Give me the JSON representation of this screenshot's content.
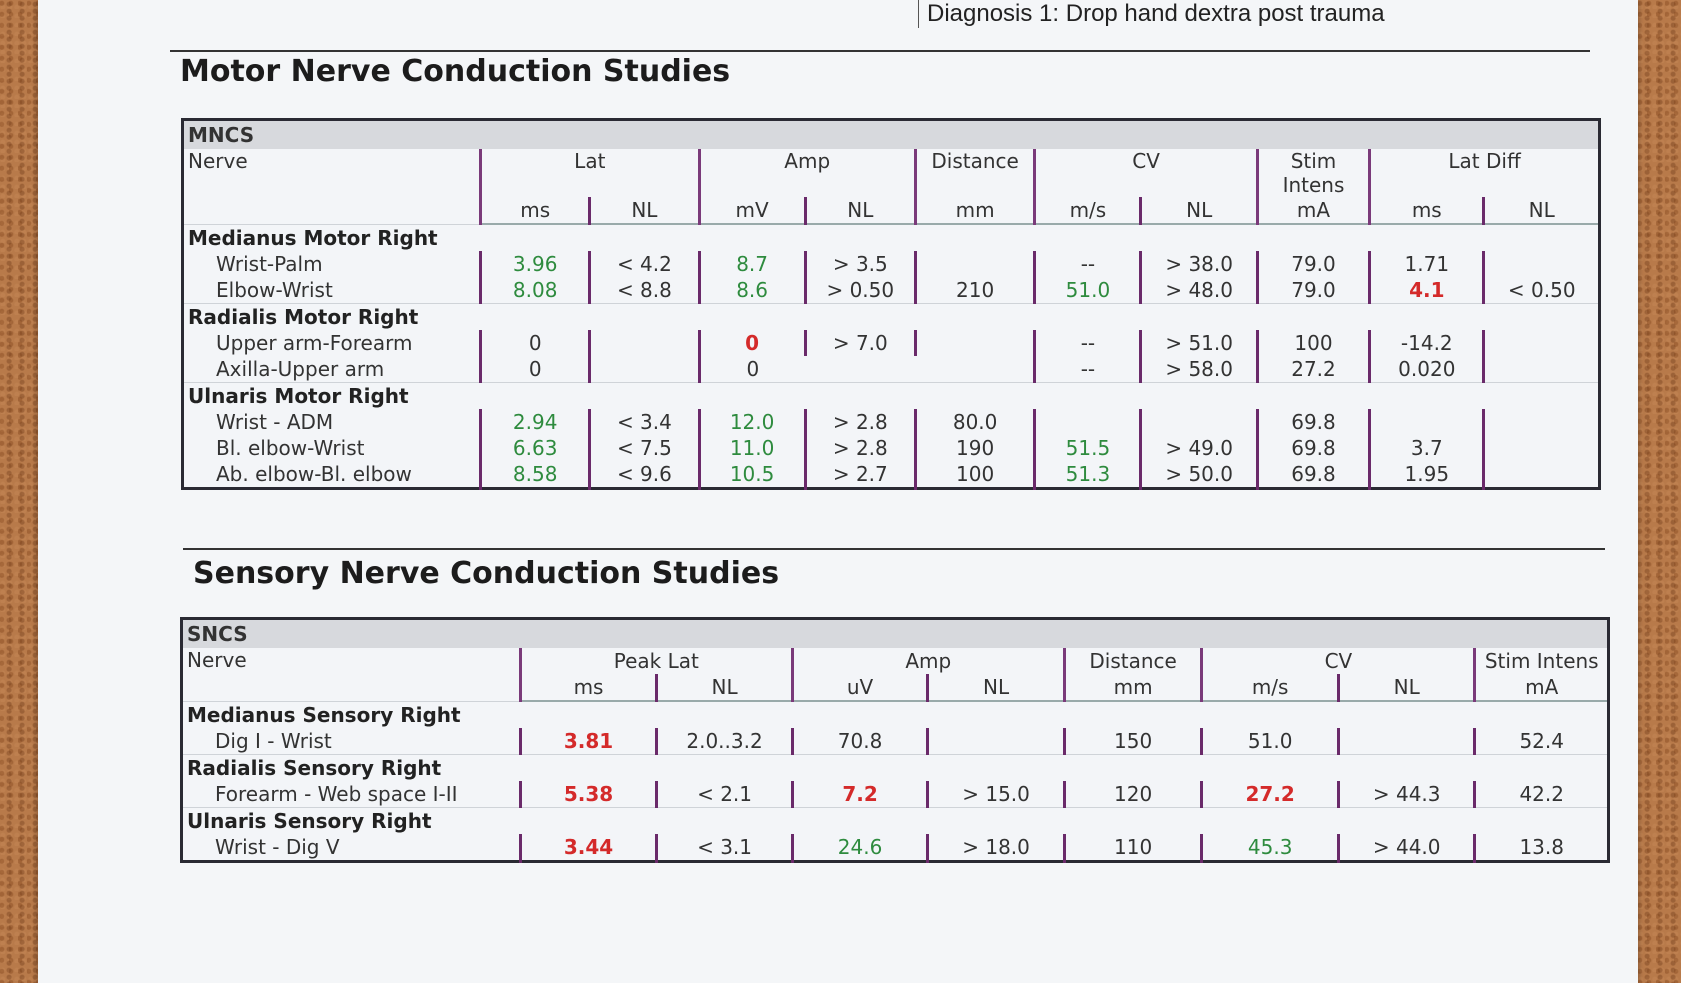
{
  "diagnosis": "Diagnosis 1: Drop hand dextra post trauma",
  "motor": {
    "title": "Motor Nerve Conduction Studies",
    "band": "MNCS",
    "headers": {
      "nerve": "Nerve",
      "lat": "Lat",
      "amp": "Amp",
      "distance": "Distance",
      "cv": "CV",
      "stim": "Stim Intens",
      "latdiff": "Lat Diff"
    },
    "units": [
      "ms",
      "NL",
      "mV",
      "NL",
      "mm",
      "m/s",
      "NL",
      "mA",
      "ms",
      "NL"
    ],
    "groups": [
      {
        "name": "Medianus Motor Right",
        "rows": [
          {
            "site": "Wrist-Palm",
            "cells": [
              "3.96",
              "< 4.2",
              "8.7",
              "> 3.5",
              "",
              "--",
              "> 38.0",
              "79.0",
              "1.71",
              ""
            ]
          },
          {
            "site": "Elbow-Wrist",
            "cells": [
              "8.08",
              "< 8.8",
              "8.6",
              "> 0.50",
              "210",
              "51.0",
              "> 48.0",
              "79.0",
              "4.1",
              "< 0.50"
            ]
          }
        ]
      },
      {
        "name": "Radialis Motor Right",
        "rows": [
          {
            "site": "Upper arm-Forearm",
            "cells": [
              "0",
              "",
              "0",
              "> 7.0",
              "",
              "--",
              "> 51.0",
              "100",
              "-14.2",
              ""
            ]
          },
          {
            "site": "Axilla-Upper arm",
            "cells": [
              "0",
              "",
              "0",
              "",
              "",
              "--",
              "> 58.0",
              "27.2",
              "0.020",
              ""
            ]
          }
        ]
      },
      {
        "name": "Ulnaris Motor Right",
        "rows": [
          {
            "site": "Wrist - ADM",
            "cells": [
              "2.94",
              "< 3.4",
              "12.0",
              "> 2.8",
              "80.0",
              "",
              "",
              "69.8",
              "",
              ""
            ]
          },
          {
            "site": "Bl. elbow-Wrist",
            "cells": [
              "6.63",
              "< 7.5",
              "11.0",
              "> 2.8",
              "190",
              "51.5",
              "> 49.0",
              "69.8",
              "3.7",
              ""
            ]
          },
          {
            "site": "Ab. elbow-Bl. elbow",
            "cells": [
              "8.58",
              "< 9.6",
              "10.5",
              "> 2.7",
              "100",
              "51.3",
              "> 50.0",
              "69.8",
              "1.95",
              ""
            ]
          }
        ]
      }
    ]
  },
  "sensory": {
    "title": "Sensory Nerve Conduction Studies",
    "band": "SNCS",
    "headers": {
      "nerve": "Nerve",
      "peaklat": "Peak Lat",
      "amp": "Amp",
      "distance": "Distance",
      "cv": "CV",
      "stim": "Stim Intens"
    },
    "units": [
      "ms",
      "NL",
      "uV",
      "NL",
      "mm",
      "m/s",
      "NL",
      "mA"
    ],
    "groups": [
      {
        "name": "Medianus Sensory Right",
        "rows": [
          {
            "site": "Dig I - Wrist",
            "cells": [
              "3.81",
              "2.0..3.2",
              "70.8",
              "",
              "150",
              "51.0",
              "",
              "52.4"
            ]
          }
        ]
      },
      {
        "name": "Radialis Sensory Right",
        "rows": [
          {
            "site": "Forearm - Web space I-II",
            "cells": [
              "5.38",
              "< 2.1",
              "7.2",
              "> 15.0",
              "120",
              "27.2",
              "> 44.3",
              "42.2"
            ]
          }
        ]
      },
      {
        "name": "Ulnaris Sensory Right",
        "rows": [
          {
            "site": "Wrist - Dig V",
            "cells": [
              "3.44",
              "< 3.1",
              "24.6",
              "> 18.0",
              "110",
              "45.3",
              "> 44.0",
              "13.8"
            ]
          }
        ]
      }
    ]
  },
  "colors": {
    "normal": "#2e8b3e",
    "abnormal": "#d42a2a",
    "neutral": "#333333",
    "divider": "#6a2a6a"
  }
}
